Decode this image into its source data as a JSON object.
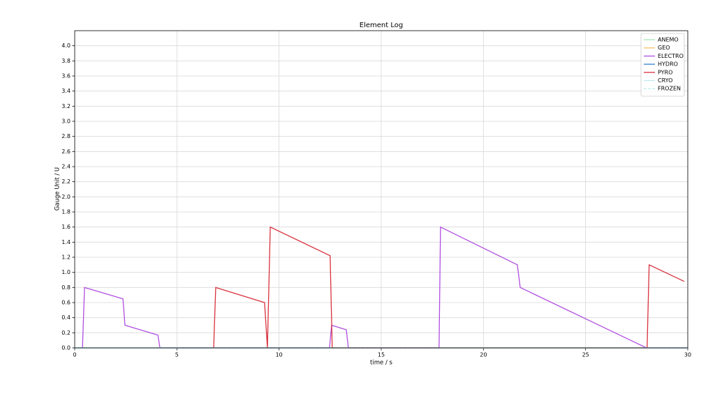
{
  "chart_data": {
    "type": "line",
    "title": "Element Log",
    "x_label": "time / s",
    "y_label": "Gauge Unit / U",
    "xlim": [
      0,
      30
    ],
    "ylim": [
      0,
      4.2
    ],
    "xticks": [
      0,
      5,
      10,
      15,
      20,
      25,
      30
    ],
    "yticks": [
      {
        "value": 0,
        "label": "0.0"
      },
      0.2,
      0.4,
      0.6,
      0.8,
      {
        "value": 1,
        "label": "1.0"
      },
      1.2,
      1.4,
      1.6,
      1.8,
      {
        "value": 2,
        "label": "2.0"
      },
      2.2,
      2.4,
      2.6,
      2.8,
      {
        "value": 3,
        "label": "3.0"
      },
      3.2,
      3.4,
      3.6,
      3.8,
      {
        "value": 4,
        "label": "4.0"
      }
    ],
    "grid": true,
    "legend": "upper right",
    "series": [
      {
        "name": "ANEMO",
        "color": "#a3e6b4",
        "x": [
          0,
          30
        ],
        "values": [
          0,
          0
        ]
      },
      {
        "name": "GEO",
        "color": "#f5c16b",
        "x": [
          0,
          30
        ],
        "values": [
          0,
          0
        ]
      },
      {
        "name": "ELECTRO",
        "color": "#b04ee0",
        "x": [
          0.38,
          0.48,
          2.36,
          2.46,
          4.07,
          4.17,
          12.47,
          12.57,
          13.29,
          13.39,
          17.83,
          17.9,
          21.66,
          21.8,
          27.98,
          30
        ],
        "values": [
          0,
          0.8,
          0.65,
          0.3,
          0.17,
          0,
          0,
          0.3,
          0.24,
          0,
          0,
          1.6,
          1.1,
          0.8,
          0,
          0
        ]
      },
      {
        "name": "HYDRO",
        "color": "#2f7fd0",
        "x": [
          0,
          30
        ],
        "values": [
          0,
          0
        ]
      },
      {
        "name": "PYRO",
        "color": "#d8313d",
        "x": [
          6.8,
          6.9,
          9.29,
          9.43,
          9.57,
          12.5,
          12.6,
          28.01,
          28.11,
          29.83
        ],
        "values": [
          0,
          0.8,
          0.6,
          0,
          1.6,
          1.22,
          0,
          0,
          1.1,
          0.88
        ]
      },
      {
        "name": "CRYO",
        "color": "#bfe9ef",
        "x": [
          0,
          30
        ],
        "values": [
          0,
          0
        ]
      },
      {
        "name": "FROZEN",
        "color": "#bfeff0",
        "linestyle": "dashed",
        "x": [
          0,
          30
        ],
        "values": [
          0,
          0
        ]
      }
    ]
  }
}
